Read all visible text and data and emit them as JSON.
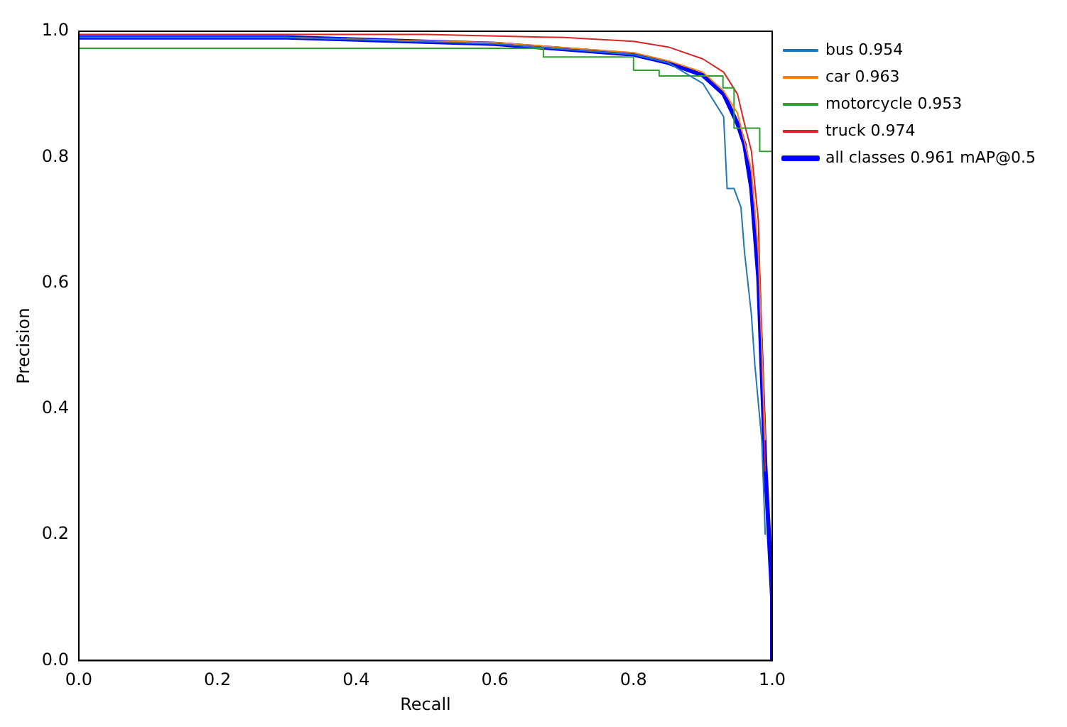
{
  "chart_data": {
    "type": "line",
    "xlabel": "Recall",
    "ylabel": "Precision",
    "xlim": [
      0,
      1
    ],
    "ylim": [
      0,
      1
    ],
    "xticks": [
      {
        "value": 0,
        "label": "0.0"
      },
      0.2,
      0.4,
      0.6,
      0.8,
      {
        "value": 1,
        "label": "1.0"
      }
    ],
    "yticks": [
      {
        "value": 0,
        "label": "0.0"
      },
      0.2,
      0.4,
      0.6,
      0.8,
      {
        "value": 1,
        "label": "1.0"
      }
    ],
    "grid": false,
    "legend": "top right",
    "marker": "none",
    "line_style": "solid",
    "series": [
      {
        "name": "bus 0.954",
        "color": "#1f77b4",
        "x": [
          0,
          0.3,
          0.6,
          0.8,
          0.85,
          0.9,
          0.93,
          0.935,
          0.945,
          0.955,
          0.96,
          0.97,
          0.975,
          0.985,
          0.99
        ],
        "values": [
          0.99,
          0.99,
          0.98,
          0.963,
          0.95,
          0.917,
          0.864,
          0.75,
          0.75,
          0.72,
          0.65,
          0.55,
          0.47,
          0.35,
          0.2
        ]
      },
      {
        "name": "car 0.963",
        "color": "#ff7f0e",
        "x": [
          0,
          0.3,
          0.6,
          0.8,
          0.85,
          0.9,
          0.93,
          0.95,
          0.97,
          0.98,
          0.99
        ],
        "values": [
          0.99,
          0.99,
          0.982,
          0.966,
          0.953,
          0.935,
          0.905,
          0.87,
          0.78,
          0.65,
          0.35
        ]
      },
      {
        "name": "motorcycle 0.953",
        "color": "#2ca02c",
        "x": [
          0,
          0.67,
          0.67,
          0.8,
          0.8,
          0.837,
          0.837,
          0.929,
          0.929,
          0.945,
          0.945,
          0.982,
          0.982,
          1
        ],
        "values": [
          0.973,
          0.973,
          0.959,
          0.959,
          0.938,
          0.938,
          0.929,
          0.929,
          0.91,
          0.91,
          0.846,
          0.846,
          0.809,
          0.809
        ]
      },
      {
        "name": "truck 0.974",
        "color": "#d62728",
        "x": [
          0,
          0.5,
          0.7,
          0.8,
          0.85,
          0.9,
          0.93,
          0.95,
          0.96,
          0.97,
          0.98,
          0.99
        ],
        "values": [
          0.995,
          0.995,
          0.99,
          0.984,
          0.975,
          0.956,
          0.935,
          0.9,
          0.853,
          0.81,
          0.7,
          0.3
        ]
      },
      {
        "name": "all classes 0.961 mAP@0.5",
        "color": "#0000ff",
        "x": [
          0,
          0.3,
          0.6,
          0.8,
          0.85,
          0.9,
          0.93,
          0.95,
          0.96,
          0.97,
          0.98,
          0.99,
          1,
          1
        ],
        "values": [
          0.99,
          0.99,
          0.98,
          0.963,
          0.95,
          0.93,
          0.9,
          0.853,
          0.82,
          0.75,
          0.61,
          0.31,
          0.1,
          0
        ]
      }
    ]
  }
}
